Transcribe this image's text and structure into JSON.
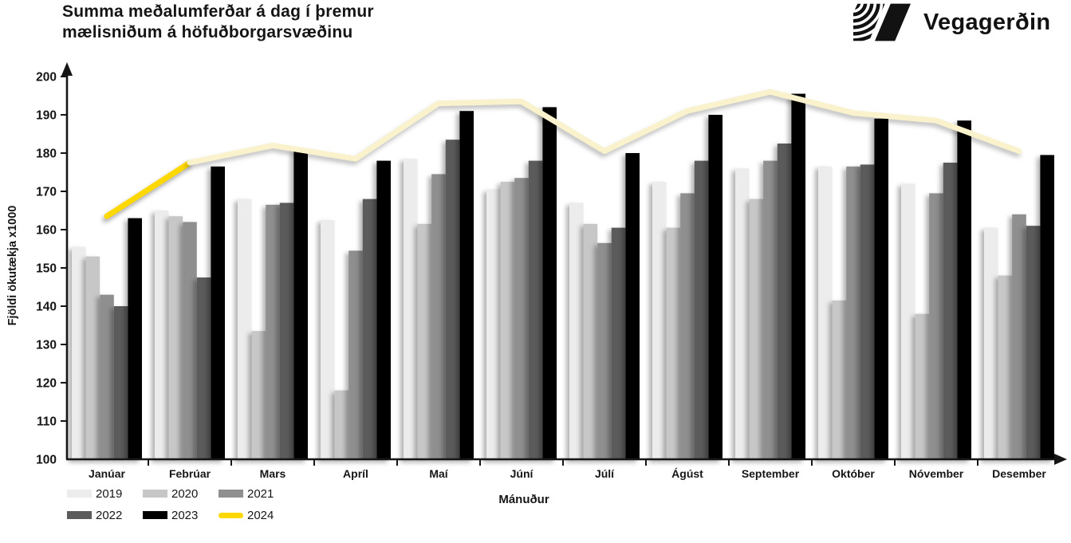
{
  "header": {
    "title_line1": "Summa meðalumferðar á dag í þremur",
    "title_line2": "mælisniðum á höfuðborgarsvæðinu",
    "logo_text": "Vegagerðin"
  },
  "chart_data": {
    "type": "bar",
    "title": "Summa meðalumferðar á dag í þremur mælisniðum á höfuðborgarsvæðinu",
    "xlabel": "Mánuður",
    "ylabel": "Fjöldi ökutækja x1000",
    "ylim": [
      100,
      200
    ],
    "ytick_step": 10,
    "grid": false,
    "legend_position": "bottom-left",
    "categories": [
      "Janúar",
      "Febrúar",
      "Mars",
      "Apríl",
      "Maí",
      "Júní",
      "Júlí",
      "Ágúst",
      "September",
      "Október",
      "Nóvember",
      "Desember"
    ],
    "series": [
      {
        "name": "2019",
        "type": "bar",
        "color": "#ECECEC",
        "values": [
          155.5,
          165,
          168,
          162.5,
          178.5,
          170.5,
          167,
          172.5,
          176,
          176.5,
          172,
          160.5
        ]
      },
      {
        "name": "2020",
        "type": "bar",
        "color": "#C7C7C7",
        "values": [
          153,
          163.5,
          133.5,
          118,
          161.5,
          172.5,
          161.5,
          160.5,
          168,
          141.5,
          138,
          148
        ]
      },
      {
        "name": "2021",
        "type": "bar",
        "color": "#8F8F8F",
        "values": [
          143,
          162,
          166.5,
          154.5,
          174.5,
          173.5,
          156.5,
          169.5,
          178,
          176.5,
          169.5,
          164
        ]
      },
      {
        "name": "2022",
        "type": "bar",
        "color": "#5B5B5B",
        "values": [
          140,
          147.5,
          167,
          168,
          183.5,
          178,
          160.5,
          178,
          182.5,
          177,
          177.5,
          161
        ]
      },
      {
        "name": "2023",
        "type": "bar",
        "color": "#000000",
        "values": [
          163,
          176.5,
          181,
          178,
          191,
          192,
          180,
          190,
          195.5,
          189,
          188.5,
          179.5
        ]
      },
      {
        "name": "2024",
        "type": "line",
        "color": "#FFD800",
        "values": [
          163.5,
          177.5,
          null,
          null,
          null,
          null,
          null,
          null,
          null,
          null,
          null,
          null
        ]
      }
    ],
    "overlay_line": {
      "color": "#F9F2CC",
      "values": [
        null,
        177.5,
        182,
        178.5,
        193,
        193.5,
        180.5,
        191,
        196,
        190.5,
        188.5,
        180.5
      ]
    },
    "legend": [
      {
        "label": "2019",
        "color": "#ECECEC",
        "shape": "bar"
      },
      {
        "label": "2020",
        "color": "#C7C7C7",
        "shape": "bar"
      },
      {
        "label": "2021",
        "color": "#8F8F8F",
        "shape": "bar"
      },
      {
        "label": "2022",
        "color": "#5B5B5B",
        "shape": "bar"
      },
      {
        "label": "2023",
        "color": "#000000",
        "shape": "bar"
      },
      {
        "label": "2024",
        "color": "#FFD800",
        "shape": "line"
      }
    ]
  }
}
